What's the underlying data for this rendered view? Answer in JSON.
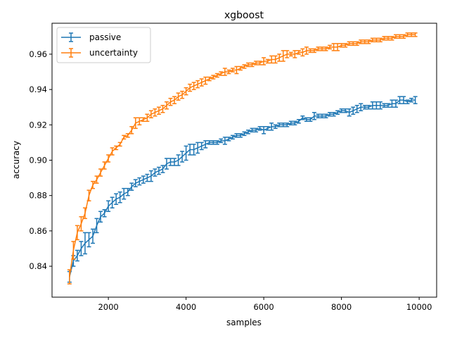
{
  "chart_data": {
    "type": "line",
    "title": "xgboost",
    "xlabel": "samples",
    "ylabel": "accuracy",
    "xlim": [
      550,
      10450
    ],
    "ylim": [
      0.8225,
      0.9775
    ],
    "x_ticks": [
      2000,
      4000,
      6000,
      8000,
      10000
    ],
    "x_tick_labels": [
      "2000",
      "4000",
      "6000",
      "8000",
      "10000"
    ],
    "y_ticks": [
      0.84,
      0.86,
      0.88,
      0.9,
      0.92,
      0.94,
      0.96
    ],
    "y_tick_labels": [
      "0.84",
      "0.86",
      "0.88",
      "0.90",
      "0.92",
      "0.94",
      "0.96"
    ],
    "grid": false,
    "legend_position": "top-left",
    "series": [
      {
        "name": "passive",
        "color": "#1f77b4",
        "x": [
          1000,
          1100,
          1200,
          1300,
          1400,
          1500,
          1600,
          1700,
          1800,
          1900,
          2000,
          2100,
          2200,
          2300,
          2400,
          2500,
          2600,
          2700,
          2800,
          2900,
          3000,
          3100,
          3200,
          3300,
          3400,
          3500,
          3600,
          3700,
          3800,
          3900,
          4000,
          4100,
          4200,
          4300,
          4400,
          4500,
          4600,
          4700,
          4800,
          4900,
          5000,
          5100,
          5200,
          5300,
          5400,
          5500,
          5600,
          5700,
          5800,
          5900,
          6000,
          6100,
          6200,
          6300,
          6400,
          6500,
          6600,
          6700,
          6800,
          6900,
          7000,
          7100,
          7200,
          7300,
          7400,
          7500,
          7600,
          7700,
          7800,
          7900,
          8000,
          8100,
          8200,
          8300,
          8400,
          8500,
          8600,
          8700,
          8800,
          8900,
          9000,
          9100,
          9200,
          9300,
          9400,
          9500,
          9600,
          9700,
          9800,
          9900
        ],
        "y": [
          0.834,
          0.843,
          0.846,
          0.85,
          0.853,
          0.855,
          0.857,
          0.863,
          0.868,
          0.87,
          0.874,
          0.876,
          0.878,
          0.879,
          0.881,
          0.882,
          0.885,
          0.887,
          0.888,
          0.889,
          0.89,
          0.891,
          0.893,
          0.894,
          0.895,
          0.898,
          0.899,
          0.899,
          0.9,
          0.902,
          0.904,
          0.906,
          0.906,
          0.907,
          0.908,
          0.909,
          0.91,
          0.91,
          0.91,
          0.911,
          0.911,
          0.912,
          0.913,
          0.914,
          0.914,
          0.915,
          0.916,
          0.917,
          0.917,
          0.918,
          0.917,
          0.918,
          0.919,
          0.919,
          0.92,
          0.92,
          0.92,
          0.921,
          0.921,
          0.922,
          0.924,
          0.923,
          0.923,
          0.925,
          0.925,
          0.925,
          0.925,
          0.926,
          0.926,
          0.927,
          0.928,
          0.928,
          0.927,
          0.928,
          0.929,
          0.93,
          0.93,
          0.93,
          0.931,
          0.931,
          0.931,
          0.931,
          0.931,
          0.932,
          0.932,
          0.934,
          0.934,
          0.933,
          0.934,
          0.934
        ],
        "err": [
          0.003,
          0.003,
          0.003,
          0.004,
          0.006,
          0.004,
          0.004,
          0.004,
          0.003,
          0.002,
          0.003,
          0.003,
          0.003,
          0.003,
          0.003,
          0.002,
          0.002,
          0.002,
          0.002,
          0.002,
          0.002,
          0.003,
          0.002,
          0.002,
          0.002,
          0.003,
          0.002,
          0.002,
          0.003,
          0.003,
          0.004,
          0.003,
          0.003,
          0.003,
          0.002,
          0.002,
          0.001,
          0.001,
          0.001,
          0.001,
          0.002,
          0.001,
          0.001,
          0.001,
          0.001,
          0.001,
          0.001,
          0.001,
          0.001,
          0.001,
          0.002,
          0.001,
          0.002,
          0.001,
          0.001,
          0.001,
          0.001,
          0.001,
          0.001,
          0.001,
          0.001,
          0.001,
          0.001,
          0.002,
          0.001,
          0.001,
          0.001,
          0.001,
          0.001,
          0.001,
          0.001,
          0.001,
          0.002,
          0.002,
          0.002,
          0.002,
          0.001,
          0.001,
          0.002,
          0.002,
          0.002,
          0.001,
          0.001,
          0.002,
          0.002,
          0.002,
          0.002,
          0.001,
          0.001,
          0.002
        ]
      },
      {
        "name": "uncertainty",
        "color": "#ff7f0e",
        "x": [
          1000,
          1100,
          1200,
          1300,
          1400,
          1500,
          1600,
          1700,
          1800,
          1900,
          2000,
          2100,
          2200,
          2300,
          2400,
          2500,
          2600,
          2700,
          2800,
          2900,
          3000,
          3100,
          3200,
          3300,
          3400,
          3500,
          3600,
          3700,
          3800,
          3900,
          4000,
          4100,
          4200,
          4300,
          4400,
          4500,
          4600,
          4700,
          4800,
          4900,
          5000,
          5100,
          5200,
          5300,
          5400,
          5500,
          5600,
          5700,
          5800,
          5900,
          6000,
          6100,
          6200,
          6300,
          6400,
          6500,
          6600,
          6700,
          6800,
          6900,
          7000,
          7100,
          7200,
          7300,
          7400,
          7500,
          7600,
          7700,
          7800,
          7900,
          8000,
          8100,
          8200,
          8300,
          8400,
          8500,
          8600,
          8700,
          8800,
          8900,
          9000,
          9100,
          9200,
          9300,
          9400,
          9500,
          9600,
          9700,
          9800,
          9900
        ],
        "y": [
          0.834,
          0.849,
          0.859,
          0.864,
          0.87,
          0.88,
          0.886,
          0.889,
          0.893,
          0.897,
          0.901,
          0.905,
          0.907,
          0.909,
          0.913,
          0.914,
          0.917,
          0.921,
          0.922,
          0.923,
          0.924,
          0.926,
          0.927,
          0.928,
          0.929,
          0.931,
          0.933,
          0.934,
          0.936,
          0.937,
          0.939,
          0.941,
          0.942,
          0.943,
          0.944,
          0.945,
          0.946,
          0.947,
          0.948,
          0.949,
          0.95,
          0.95,
          0.951,
          0.951,
          0.952,
          0.953,
          0.954,
          0.954,
          0.955,
          0.955,
          0.956,
          0.956,
          0.957,
          0.957,
          0.958,
          0.959,
          0.96,
          0.96,
          0.96,
          0.961,
          0.961,
          0.962,
          0.962,
          0.962,
          0.963,
          0.963,
          0.963,
          0.964,
          0.964,
          0.964,
          0.965,
          0.965,
          0.966,
          0.966,
          0.966,
          0.967,
          0.967,
          0.967,
          0.968,
          0.968,
          0.968,
          0.969,
          0.969,
          0.969,
          0.97,
          0.97,
          0.97,
          0.971,
          0.971,
          0.971
        ],
        "err": [
          0.004,
          0.005,
          0.004,
          0.004,
          0.003,
          0.003,
          0.002,
          0.002,
          0.002,
          0.002,
          0.002,
          0.002,
          0.001,
          0.001,
          0.001,
          0.001,
          0.002,
          0.003,
          0.002,
          0.001,
          0.002,
          0.002,
          0.002,
          0.002,
          0.002,
          0.002,
          0.002,
          0.002,
          0.002,
          0.002,
          0.002,
          0.002,
          0.002,
          0.002,
          0.002,
          0.002,
          0.001,
          0.001,
          0.001,
          0.001,
          0.002,
          0.001,
          0.001,
          0.002,
          0.001,
          0.001,
          0.001,
          0.001,
          0.001,
          0.001,
          0.002,
          0.001,
          0.002,
          0.002,
          0.002,
          0.003,
          0.002,
          0.001,
          0.002,
          0.001,
          0.002,
          0.002,
          0.001,
          0.001,
          0.001,
          0.001,
          0.001,
          0.001,
          0.002,
          0.002,
          0.001,
          0.001,
          0.001,
          0.001,
          0.001,
          0.001,
          0.001,
          0.001,
          0.001,
          0.001,
          0.001,
          0.001,
          0.001,
          0.001,
          0.001,
          0.001,
          0.001,
          0.001,
          0.001,
          0.001
        ]
      }
    ]
  }
}
